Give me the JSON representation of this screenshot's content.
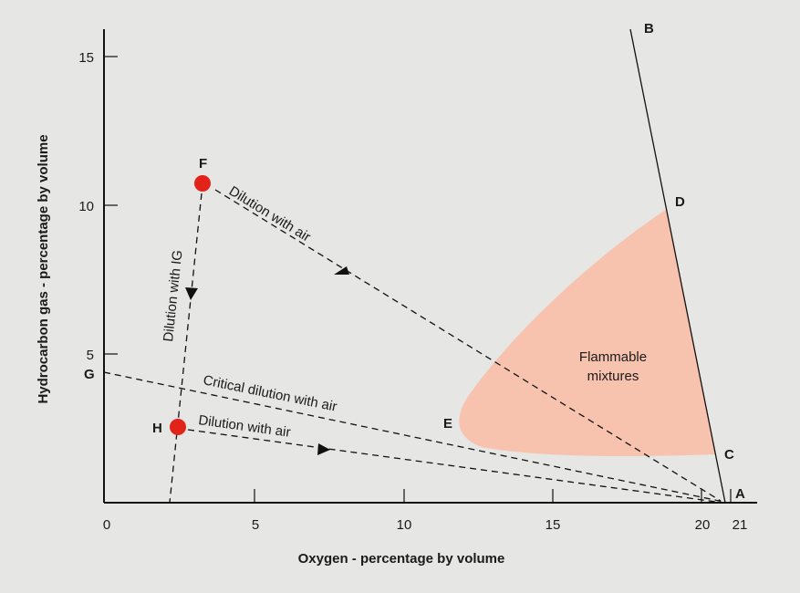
{
  "chart_data": {
    "type": "flammability-diagram",
    "xlabel": "Oxygen - percentage by volume",
    "ylabel": "Hydrocarbon gas - percentage by volume",
    "x_ticks": [
      "0",
      "5",
      "10",
      "15",
      "20",
      "21"
    ],
    "y_ticks": [
      "5",
      "10",
      "15"
    ],
    "region": {
      "label_line1": "Flammable",
      "label_line2": "mixtures",
      "color": "#f7c3ae"
    },
    "points": {
      "A": {
        "label": "A",
        "x": 21,
        "y": 0
      },
      "B": {
        "label": "B",
        "x": 17.6,
        "y": 15.9
      },
      "C": {
        "label": "C",
        "x": 20.5,
        "y": 1.6
      },
      "D": {
        "label": "D",
        "x": 18.8,
        "y": 10
      },
      "E": {
        "label": "E",
        "x": 11.9,
        "y": 2.8
      },
      "F": {
        "label": "F",
        "x": 3.3,
        "y": 10.8,
        "color": "#e2231a"
      },
      "G": {
        "label": "G",
        "x": 0,
        "y": 4.4
      },
      "H": {
        "label": "H",
        "x": 2.4,
        "y": 2.6,
        "color": "#e2231a"
      }
    },
    "lines": {
      "f_air": "Dilution with air",
      "f_ig": "Dilution with IG",
      "critical": "Critical dilution with air",
      "h_air": "Dilution with air"
    }
  }
}
